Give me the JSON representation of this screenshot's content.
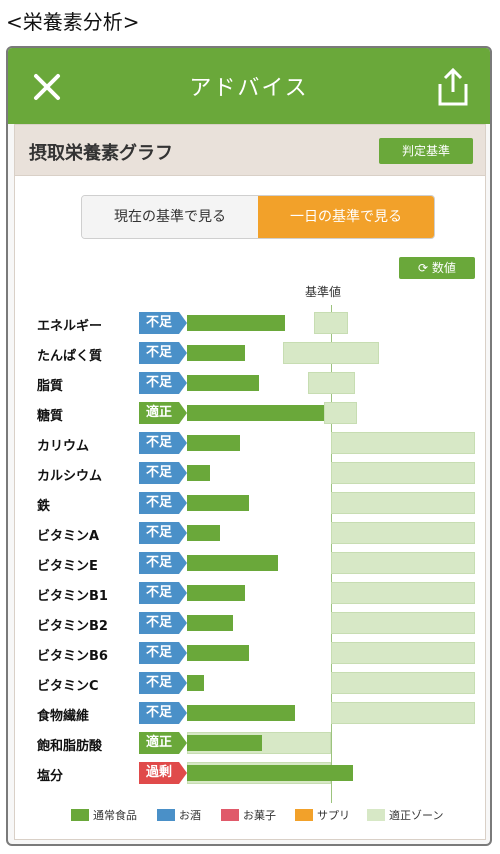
{
  "caption": "<栄養素分析>",
  "header": {
    "title": "アドバイス",
    "close_icon": "close-icon",
    "share_icon": "share-icon"
  },
  "card": {
    "title": "摂取栄養素グラフ",
    "criteria_button": "判定基準"
  },
  "toggle": {
    "left": "現在の基準で見る",
    "right": "一日の基準で見る",
    "selected": "right"
  },
  "value_button": "数値",
  "reference_label": "基準値",
  "colors": {
    "bar": "#6aa83a",
    "zone": "#d7e8c6",
    "status_low": "#4a90c8",
    "status_ok": "#6aa83a",
    "status_over": "#e04a4a",
    "legend_snack": "#e05a6a",
    "legend_supplement": "#f2a12a"
  },
  "nutrients": [
    {
      "name": "エネルギー",
      "status": "不足",
      "status_type": "low",
      "intake": 0.68,
      "zone_start": 0.88,
      "zone_end": 1.12
    },
    {
      "name": "たんぱく質",
      "status": "不足",
      "status_type": "low",
      "intake": 0.4,
      "zone_start": 0.67,
      "zone_end": 1.33
    },
    {
      "name": "脂質",
      "status": "不足",
      "status_type": "low",
      "intake": 0.5,
      "zone_start": 0.84,
      "zone_end": 1.17
    },
    {
      "name": "糖質",
      "status": "適正",
      "status_type": "ok",
      "intake": 0.95,
      "zone_start": 0.95,
      "zone_end": 1.18
    },
    {
      "name": "カリウム",
      "status": "不足",
      "status_type": "low",
      "intake": 0.37,
      "zone_start": 1.0,
      "zone_end": 2.0
    },
    {
      "name": "カルシウム",
      "status": "不足",
      "status_type": "low",
      "intake": 0.16,
      "zone_start": 1.0,
      "zone_end": 2.0
    },
    {
      "name": "鉄",
      "status": "不足",
      "status_type": "low",
      "intake": 0.43,
      "zone_start": 1.0,
      "zone_end": 2.0
    },
    {
      "name": "ビタミンA",
      "status": "不足",
      "status_type": "low",
      "intake": 0.23,
      "zone_start": 1.0,
      "zone_end": 2.0
    },
    {
      "name": "ビタミンE",
      "status": "不足",
      "status_type": "low",
      "intake": 0.63,
      "zone_start": 1.0,
      "zone_end": 2.0
    },
    {
      "name": "ビタミンB1",
      "status": "不足",
      "status_type": "low",
      "intake": 0.4,
      "zone_start": 1.0,
      "zone_end": 2.0
    },
    {
      "name": "ビタミンB2",
      "status": "不足",
      "status_type": "low",
      "intake": 0.32,
      "zone_start": 1.0,
      "zone_end": 2.0
    },
    {
      "name": "ビタミンB6",
      "status": "不足",
      "status_type": "low",
      "intake": 0.43,
      "zone_start": 1.0,
      "zone_end": 2.0
    },
    {
      "name": "ビタミンC",
      "status": "不足",
      "status_type": "low",
      "intake": 0.12,
      "zone_start": 1.0,
      "zone_end": 2.0
    },
    {
      "name": "食物繊維",
      "status": "不足",
      "status_type": "low",
      "intake": 0.75,
      "zone_start": 1.0,
      "zone_end": 2.0
    },
    {
      "name": "飽和脂肪酸",
      "status": "適正",
      "status_type": "ok",
      "intake": 0.52,
      "zone_start": 0.0,
      "zone_end": 1.0
    },
    {
      "name": "塩分",
      "status": "過剰",
      "status_type": "over",
      "intake": 1.15,
      "zone_start": 0.0,
      "zone_end": 1.0
    }
  ],
  "legend": [
    {
      "label": "通常食品",
      "color": "#6aa83a"
    },
    {
      "label": "お酒",
      "color": "#4a90c8"
    },
    {
      "label": "お菓子",
      "color": "#e05a6a"
    },
    {
      "label": "サプリ",
      "color": "#f2a12a"
    },
    {
      "label": "適正ゾーン",
      "color": "#d7e8c6"
    }
  ]
}
